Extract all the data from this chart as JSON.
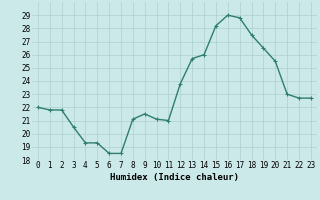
{
  "x": [
    0,
    1,
    2,
    3,
    4,
    5,
    6,
    7,
    8,
    9,
    10,
    11,
    12,
    13,
    14,
    15,
    16,
    17,
    18,
    19,
    20,
    21,
    22,
    23
  ],
  "y": [
    22,
    21.8,
    21.8,
    20.5,
    19.3,
    19.3,
    18.5,
    18.5,
    21.1,
    21.5,
    21.1,
    21.0,
    23.8,
    25.7,
    26.0,
    28.2,
    29.0,
    28.8,
    27.5,
    26.5,
    25.5,
    23.0,
    22.7,
    22.7
  ],
  "line_color": "#2e7d6e",
  "marker": "+",
  "marker_size": 3,
  "background_color": "#cce9e9",
  "grid_color": "#aed0d0",
  "xlabel": "Humidex (Indice chaleur)",
  "xlim": [
    -0.5,
    23.5
  ],
  "ylim": [
    18,
    30
  ],
  "yticks": [
    18,
    19,
    20,
    21,
    22,
    23,
    24,
    25,
    26,
    27,
    28,
    29
  ],
  "xticks": [
    0,
    1,
    2,
    3,
    4,
    5,
    6,
    7,
    8,
    9,
    10,
    11,
    12,
    13,
    14,
    15,
    16,
    17,
    18,
    19,
    20,
    21,
    22,
    23
  ],
  "tick_fontsize": 5.5,
  "xlabel_fontsize": 6.5,
  "line_width": 1.0
}
